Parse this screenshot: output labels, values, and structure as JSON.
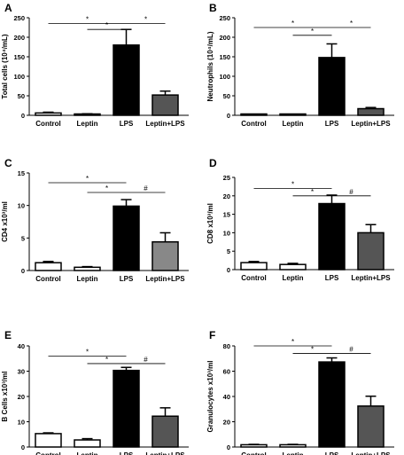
{
  "chart_data": [
    {
      "panel": "A",
      "type": "bar",
      "ylabel": "Total cells (10⁴/mL)",
      "categories": [
        "Control",
        "Leptin",
        "LPS",
        "Leptin+LPS"
      ],
      "values": [
        6,
        3,
        180,
        52
      ],
      "errors": [
        2,
        1,
        40,
        10
      ],
      "colors": [
        "#ffffff",
        "#ffffff",
        "#000000",
        "#555555"
      ],
      "yticks": [
        0,
        50,
        100,
        150,
        200,
        250
      ],
      "ylim": [
        0,
        250
      ],
      "sig": [
        {
          "from": 0,
          "to": 2,
          "label": "*",
          "y": 235
        },
        {
          "from": 1,
          "to": 2,
          "label": "*",
          "y": 220
        },
        {
          "from": 2,
          "to": 3,
          "label": "*",
          "y": 235
        }
      ]
    },
    {
      "panel": "B",
      "type": "bar",
      "ylabel": "Neutrophils (10⁴/mL)",
      "categories": [
        "Control",
        "Leptin",
        "LPS",
        "Leptin+LPS"
      ],
      "values": [
        1,
        1,
        148,
        17
      ],
      "errors": [
        0.5,
        0.5,
        35,
        3
      ],
      "colors": [
        "#ffffff",
        "#ffffff",
        "#000000",
        "#555555"
      ],
      "yticks": [
        0,
        50,
        100,
        150,
        200,
        250
      ],
      "ylim": [
        0,
        250
      ],
      "sig": [
        {
          "from": 0,
          "to": 2,
          "label": "*",
          "y": 225
        },
        {
          "from": 1,
          "to": 2,
          "label": "*",
          "y": 205
        },
        {
          "from": 2,
          "to": 3,
          "label": "*",
          "y": 225
        }
      ]
    },
    {
      "panel": "C",
      "type": "bar",
      "ylabel": "CD4 x10³/ml",
      "categories": [
        "Control",
        "Leptin",
        "LPS",
        "Leptin+LPS"
      ],
      "values": [
        1.2,
        0.5,
        9.9,
        4.4
      ],
      "errors": [
        0.2,
        0.1,
        1.0,
        1.4
      ],
      "colors": [
        "#ffffff",
        "#ffffff",
        "#000000",
        "#888888"
      ],
      "yticks": [
        0,
        5,
        10,
        15
      ],
      "ylim": [
        0,
        15
      ],
      "sig": [
        {
          "from": 0,
          "to": 2,
          "label": "*",
          "y": 13.5
        },
        {
          "from": 1,
          "to": 2,
          "label": "*",
          "y": 12
        },
        {
          "from": 2,
          "to": 3,
          "label": "#",
          "y": 12
        }
      ]
    },
    {
      "panel": "D",
      "type": "bar",
      "ylabel": "CD8 x10³/ml",
      "categories": [
        "Control",
        "Leptin",
        "LPS",
        "Leptin+LPS"
      ],
      "values": [
        1.9,
        1.4,
        17.9,
        10
      ],
      "errors": [
        0.3,
        0.3,
        2.3,
        2.2
      ],
      "colors": [
        "#ffffff",
        "#ffffff",
        "#000000",
        "#555555"
      ],
      "yticks": [
        0,
        5,
        10,
        15,
        20,
        25
      ],
      "ylim": [
        0,
        25
      ],
      "sig": [
        {
          "from": 0,
          "to": 2,
          "label": "*",
          "y": 22
        },
        {
          "from": 1,
          "to": 2,
          "label": "*",
          "y": 20
        },
        {
          "from": 2,
          "to": 3,
          "label": "#",
          "y": 20
        }
      ]
    },
    {
      "panel": "E",
      "type": "bar",
      "ylabel": "B Cells x10³/ml",
      "categories": [
        "Control",
        "Leptin",
        "LPS",
        "Leptin+LPS"
      ],
      "values": [
        5.3,
        2.8,
        30.3,
        12.2
      ],
      "errors": [
        0.3,
        0.5,
        1.2,
        3.3
      ],
      "colors": [
        "#ffffff",
        "#ffffff",
        "#000000",
        "#555555"
      ],
      "yticks": [
        0,
        10,
        20,
        30,
        40
      ],
      "ylim": [
        0,
        40
      ],
      "sig": [
        {
          "from": 0,
          "to": 2,
          "label": "*",
          "y": 36
        },
        {
          "from": 1,
          "to": 2,
          "label": "*",
          "y": 33
        },
        {
          "from": 2,
          "to": 3,
          "label": "#",
          "y": 33
        }
      ]
    },
    {
      "panel": "F",
      "type": "bar",
      "ylabel": "Granulocytes x10³/ml",
      "categories": [
        "Control",
        "Leptin",
        "LPS",
        "Leptin+LPS"
      ],
      "values": [
        1.8,
        1.8,
        67.3,
        32.4
      ],
      "errors": [
        0.3,
        0.3,
        3.2,
        7.8
      ],
      "colors": [
        "#ffffff",
        "#ffffff",
        "#000000",
        "#555555"
      ],
      "yticks": [
        0,
        20,
        40,
        60,
        80
      ],
      "ylim": [
        0,
        80
      ],
      "sig": [
        {
          "from": 0,
          "to": 2,
          "label": "*",
          "y": 80
        },
        {
          "from": 1,
          "to": 2,
          "label": "*",
          "y": 74
        },
        {
          "from": 2,
          "to": 3,
          "label": "#",
          "y": 74
        }
      ]
    }
  ]
}
